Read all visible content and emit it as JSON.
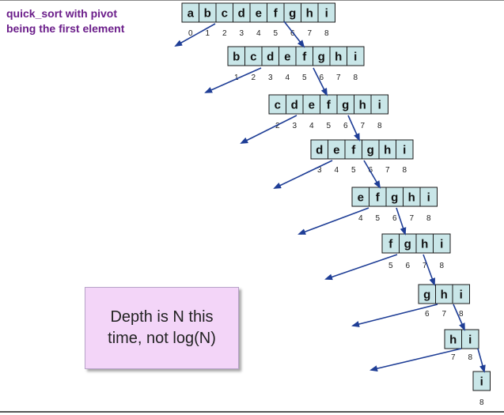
{
  "title": {
    "line1": "quick_sort with pivot",
    "line2": "being the first element"
  },
  "callout": {
    "line1": "Depth is N this",
    "line2": "time, not log(N)"
  },
  "arrays": [
    {
      "cells": [
        "a",
        "b",
        "c",
        "d",
        "e",
        "f",
        "g",
        "h",
        "i"
      ],
      "indices": [
        "0",
        "1",
        "2",
        "3",
        "4",
        "5",
        "6",
        "7",
        "8"
      ]
    },
    {
      "cells": [
        "b",
        "c",
        "d",
        "e",
        "f",
        "g",
        "h",
        "i"
      ],
      "indices": [
        "1",
        "2",
        "3",
        "4",
        "5",
        "6",
        "7",
        "8"
      ]
    },
    {
      "cells": [
        "c",
        "d",
        "e",
        "f",
        "g",
        "h",
        "i"
      ],
      "indices": [
        "2",
        "3",
        "4",
        "5",
        "6",
        "7",
        "8"
      ]
    },
    {
      "cells": [
        "d",
        "e",
        "f",
        "g",
        "h",
        "i"
      ],
      "indices": [
        "3",
        "4",
        "5",
        "6",
        "7",
        "8"
      ]
    },
    {
      "cells": [
        "e",
        "f",
        "g",
        "h",
        "i"
      ],
      "indices": [
        "4",
        "5",
        "6",
        "7",
        "8"
      ]
    },
    {
      "cells": [
        "f",
        "g",
        "h",
        "i"
      ],
      "indices": [
        "5",
        "6",
        "7",
        "8"
      ]
    },
    {
      "cells": [
        "g",
        "h",
        "i"
      ],
      "indices": [
        "6",
        "7",
        "8"
      ]
    },
    {
      "cells": [
        "h",
        "i"
      ],
      "indices": [
        "7",
        "8"
      ]
    },
    {
      "cells": [
        "i"
      ],
      "indices": [
        "8"
      ]
    }
  ],
  "colors": {
    "cell_fill": "#c9e6e8",
    "cell_border": "#1a1a1a",
    "arrow": "#1f3e96",
    "title": "#6b1e8a",
    "callout_fill": "#f3d5f8"
  }
}
